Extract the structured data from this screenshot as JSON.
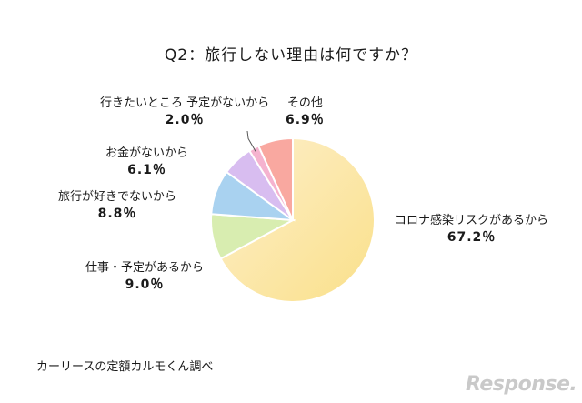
{
  "chart_data": {
    "type": "pie",
    "title": "Q2：旅行しない理由は何ですか？",
    "slices": [
      {
        "label": "コロナ感染リスクがあるから",
        "value": 67.2,
        "value_label": "67.2％",
        "color": "#FCE6B0"
      },
      {
        "label": "仕事・予定があるから",
        "value": 9.0,
        "value_label": "9.0％",
        "color": "#D8EDB0"
      },
      {
        "label": "旅行が好きでないから",
        "value": 8.8,
        "value_label": "8.8％",
        "color": "#A9D2F0"
      },
      {
        "label": "お金がないから",
        "value": 6.1,
        "value_label": "6.1％",
        "color": "#D8BDF0"
      },
      {
        "label": "行きたいところ 予定がないから",
        "value": 2.0,
        "value_label": "2.0％",
        "color": "#F5B3CF"
      },
      {
        "label": "その他",
        "value": 6.9,
        "value_label": "6.9％",
        "color": "#F9A8A0"
      }
    ],
    "legend": "none"
  },
  "source": "カーリースの定額カルモくん調べ",
  "logo_text": "Response."
}
